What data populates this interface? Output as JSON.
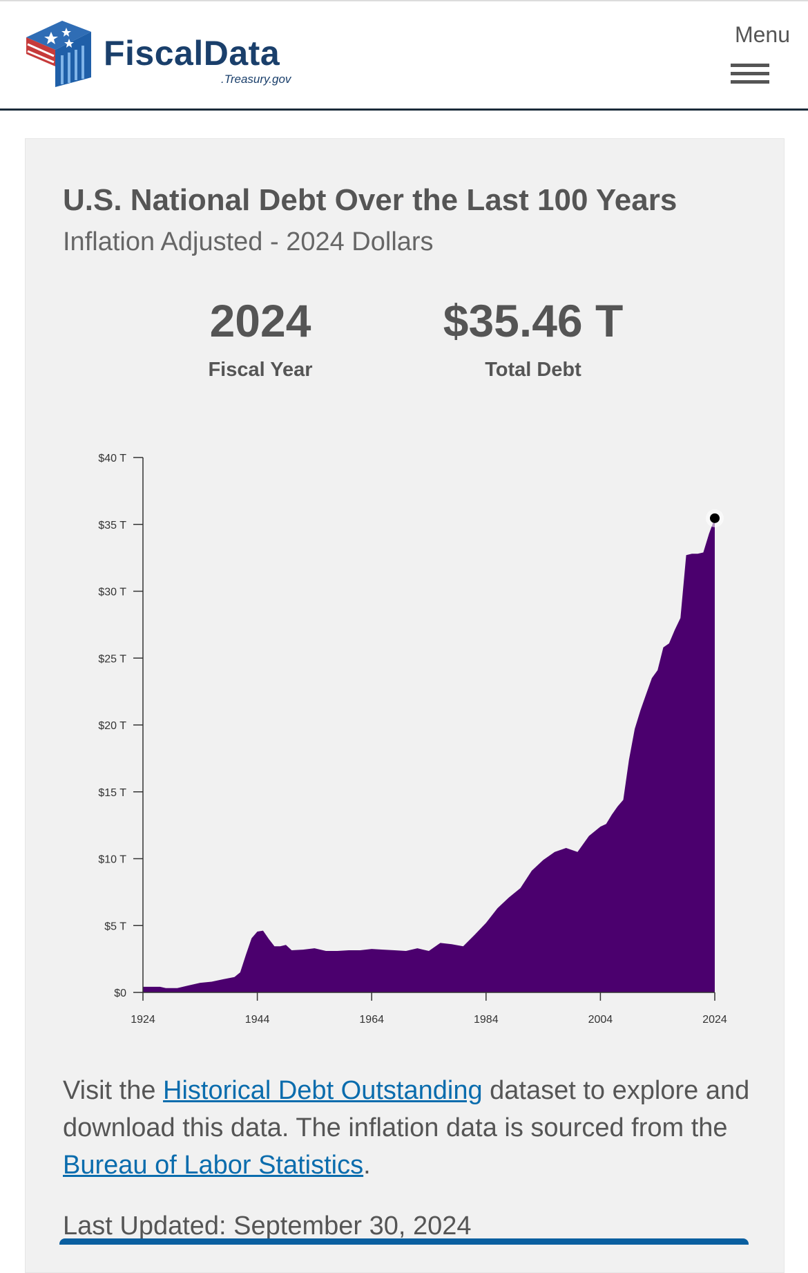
{
  "header": {
    "brand_name": "FiscalData",
    "brand_sub": ".Treasury.gov",
    "menu_label": "Menu"
  },
  "card": {
    "title": "U.S. National Debt Over the Last 100 Years",
    "subtitle": "Inflation Adjusted - 2024 Dollars",
    "stats": {
      "year_value": "2024",
      "year_label": "Fiscal Year",
      "debt_value": "$35.46 T",
      "debt_label": "Total Debt"
    },
    "description": {
      "part1": "Visit the ",
      "link1": "Historical Debt Outstanding",
      "part2": " dataset to explore and download this data. The inflation data is sourced from the ",
      "link2": "Bureau of Labor Statistics",
      "part3": "."
    },
    "last_updated": "Last Updated: September 30, 2024"
  },
  "colors": {
    "area_fill": "#4b006e",
    "brand": "#1a3f6b",
    "link": "#0a6cad"
  },
  "chart_data": {
    "type": "area",
    "title": "U.S. National Debt Over the Last 100 Years",
    "subtitle": "Inflation Adjusted - 2024 Dollars",
    "xlabel": "",
    "ylabel": "",
    "xlim": [
      1924,
      2024
    ],
    "ylim": [
      0,
      40
    ],
    "y_ticks": [
      0,
      5,
      10,
      15,
      20,
      25,
      30,
      35,
      40
    ],
    "y_tick_labels": [
      "$0",
      "$5 T",
      "$10 T",
      "$15 T",
      "$20 T",
      "$25 T",
      "$30 T",
      "$35 T",
      "$40 T"
    ],
    "x_ticks": [
      1924,
      1944,
      1964,
      1984,
      2004,
      2024
    ],
    "x_tick_labels": [
      "1924",
      "1944",
      "1964",
      "1984",
      "2004",
      "2024"
    ],
    "grid": false,
    "legend": "none",
    "highlight": {
      "x": 2024,
      "y": 35.46
    },
    "series": [
      {
        "x": [
          1924,
          1927,
          1928,
          1930,
          1932,
          1934,
          1936,
          1938,
          1940,
          1941,
          1942,
          1943,
          1944,
          1945,
          1946,
          1947,
          1948,
          1949,
          1950,
          1952,
          1954,
          1956,
          1958,
          1960,
          1962,
          1964,
          1966,
          1968,
          1970,
          1972,
          1973,
          1974,
          1976,
          1978,
          1980,
          1982,
          1984,
          1986,
          1988,
          1990,
          1992,
          1994,
          1996,
          1998,
          2000,
          2002,
          2004,
          2005,
          2006,
          2007,
          2008,
          2009,
          2010,
          2011,
          2012,
          2013,
          2014,
          2015,
          2016,
          2017,
          2018,
          2019,
          2020,
          2021,
          2022,
          2023,
          2024
        ],
        "values": [
          0.42,
          0.42,
          0.32,
          0.32,
          0.52,
          0.72,
          0.8,
          0.98,
          1.15,
          1.5,
          2.8,
          4.05,
          4.55,
          4.62,
          4.0,
          3.45,
          3.45,
          3.55,
          3.15,
          3.2,
          3.3,
          3.1,
          3.1,
          3.15,
          3.15,
          3.25,
          3.2,
          3.15,
          3.1,
          3.3,
          3.2,
          3.1,
          3.7,
          3.6,
          3.45,
          4.3,
          5.2,
          6.3,
          7.1,
          7.8,
          9.1,
          9.9,
          10.5,
          10.8,
          10.5,
          11.7,
          12.4,
          12.6,
          13.3,
          13.9,
          14.4,
          17.4,
          19.7,
          21.1,
          22.3,
          23.5,
          24.1,
          25.8,
          26.1,
          27.1,
          28.0,
          32.7,
          32.8,
          32.8,
          32.9,
          34.3,
          35.46
        ]
      }
    ]
  }
}
